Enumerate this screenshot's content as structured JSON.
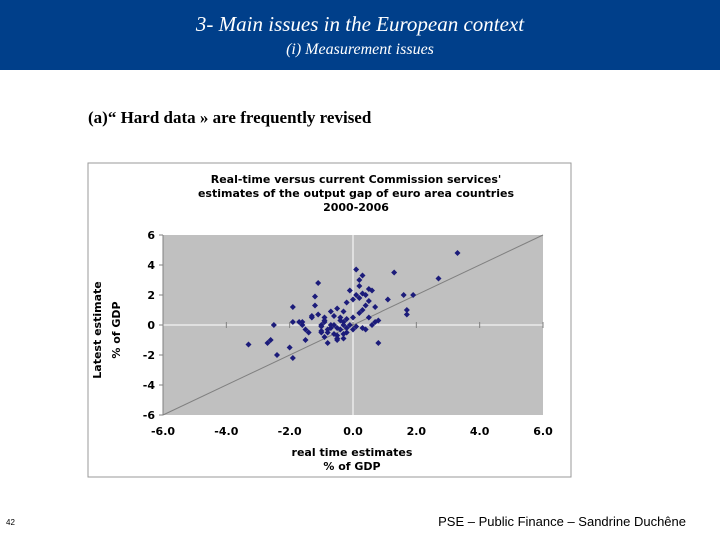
{
  "slide": {
    "title": "3- Main issues in the European context",
    "subtitle": "(i) Measurement issues",
    "heading": "(a)“ Hard data » are frequently revised",
    "footer": "PSE – Public Finance – Sandrine Duchêne",
    "page_number": "42"
  },
  "chart_data": {
    "type": "scatter",
    "title": [
      "Real-time versus current Commission services'",
      "estimates of the output gap of euro area countries",
      "2000-2006"
    ],
    "xlabel": [
      "real time estimates",
      "% of GDP"
    ],
    "ylabel": [
      "Latest estimate",
      "% of GDP"
    ],
    "xlim": [
      -6,
      6
    ],
    "ylim": [
      -6,
      6
    ],
    "x_ticks": [
      -6,
      -4,
      -2,
      0,
      2,
      4,
      6
    ],
    "x_tick_labels": [
      "-6.0",
      "-4.0",
      "-2.0",
      "0.0",
      "2.0",
      "4.0",
      "6.0"
    ],
    "y_ticks": [
      -6,
      -4,
      -2,
      0,
      2,
      4,
      6
    ],
    "y_tick_labels": [
      "-6",
      "-4",
      "-2",
      "0",
      "2",
      "4",
      "6"
    ],
    "grid": false,
    "reference_line": "45-degree line y = x",
    "colors": {
      "plot_bg": "#c0c0c0",
      "marker": "#1c1c7a",
      "line": "#808080"
    },
    "series": [
      {
        "x": [
          -3.3,
          -2.7,
          -2.4,
          -2.6,
          -2.5,
          -1.9,
          -2.0,
          -1.9,
          -1.7,
          -1.6,
          -1.6,
          -1.5,
          -1.5,
          -1.4,
          -1.3,
          -1.2,
          -1.2,
          -1.1,
          -1.1,
          -1.0,
          -1.0,
          -0.9,
          -0.9,
          -0.8,
          -0.8,
          -0.7,
          -0.7,
          -0.6,
          -0.6,
          -0.5,
          -0.5,
          -0.5,
          -0.4,
          -0.4,
          -0.3,
          -0.3,
          -0.3,
          -0.2,
          -0.2,
          -0.2,
          -0.1,
          -0.1,
          0.0,
          0.0,
          0.1,
          0.1,
          0.2,
          0.2,
          0.3,
          0.3,
          0.3,
          0.4,
          0.4,
          0.5,
          0.5,
          0.6,
          0.7,
          0.8,
          -1.9,
          -1.3,
          -0.9,
          -0.5,
          -0.3,
          -0.2,
          0.1,
          0.2,
          0.3,
          0.5,
          0.6,
          0.8,
          1.1,
          1.3,
          1.6,
          1.7,
          1.7,
          1.9,
          2.7,
          3.3,
          -1.0,
          -1.0,
          -0.9,
          -0.8,
          -0.7,
          -0.6,
          -0.5,
          -0.4,
          -0.3,
          0.0,
          0.2,
          0.4,
          0.7
        ],
        "y": [
          -1.3,
          -1.2,
          -2.0,
          -1.0,
          0.0,
          -2.2,
          -1.5,
          1.2,
          0.2,
          0.0,
          0.2,
          -1.0,
          -0.3,
          -0.5,
          0.5,
          1.3,
          1.9,
          0.7,
          2.8,
          -0.4,
          0.0,
          -0.8,
          0.2,
          -1.2,
          -0.5,
          0.9,
          -0.2,
          0.0,
          0.6,
          -0.2,
          -0.7,
          1.1,
          0.3,
          -0.3,
          0.2,
          -0.9,
          0.0,
          -0.2,
          -0.5,
          1.5,
          2.3,
          0.0,
          1.7,
          0.5,
          2.0,
          -0.1,
          2.6,
          0.8,
          3.3,
          1.0,
          -0.2,
          1.3,
          2.0,
          0.5,
          1.6,
          0.0,
          0.2,
          -1.2,
          0.2,
          0.6,
          0.5,
          -1.0,
          0.9,
          0.4,
          3.7,
          3.0,
          2.1,
          2.4,
          2.3,
          0.3,
          1.7,
          3.5,
          2.0,
          0.7,
          1.0,
          2.0,
          3.1,
          4.8,
          -0.1,
          -0.5,
          0.3,
          -0.3,
          0.0,
          -0.6,
          -0.9,
          0.5,
          -0.6,
          -0.3,
          1.8,
          -0.3,
          1.2
        ]
      }
    ]
  }
}
